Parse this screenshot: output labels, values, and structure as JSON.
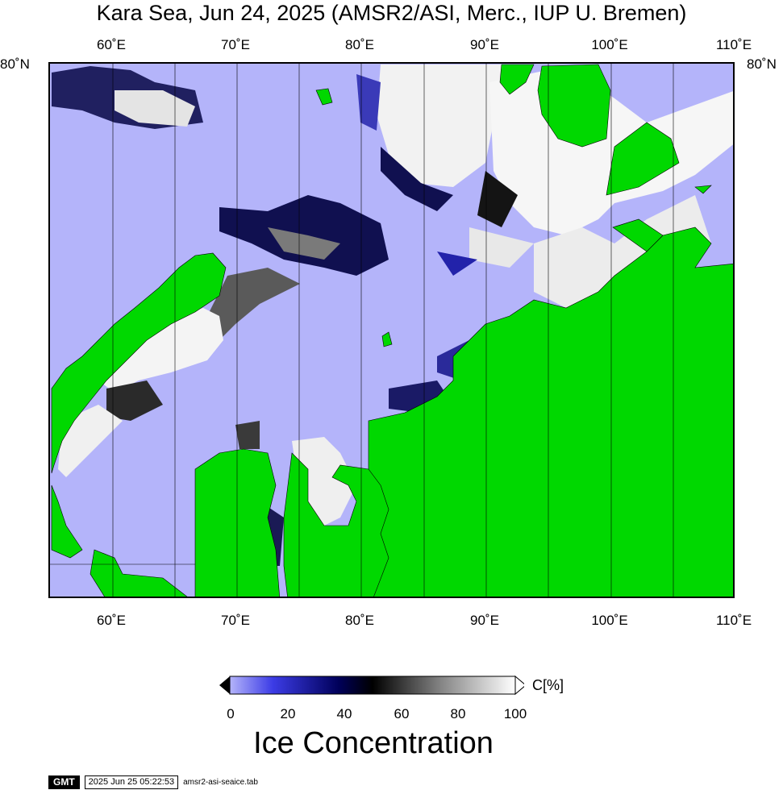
{
  "title": "Kara Sea, Jun 24, 2025 (AMSR2/ASI, Merc., IUP U. Bremen)",
  "map": {
    "lon_ticks": [
      "60˚E",
      "70˚E",
      "80˚E",
      "90˚E",
      "100˚E",
      "110˚E"
    ],
    "lat_ticks": [
      "80˚N"
    ],
    "colors": {
      "open_water": "#b4b4fa",
      "land": "#00d800",
      "ice_high": "#ffffff"
    }
  },
  "colorbar": {
    "ticks": [
      "0",
      "20",
      "40",
      "60",
      "80",
      "100"
    ],
    "unit": "C[%]",
    "title": "Ice Concentration",
    "stops": [
      "#b4b4fa",
      "#3c3ce6",
      "#00005a",
      "#000000",
      "#787878",
      "#ffffff"
    ]
  },
  "footer": {
    "logo": "GMT",
    "timestamp": "2025 Jun 25 05:22:53",
    "filename": "amsr2-asi-seaice.tab"
  }
}
